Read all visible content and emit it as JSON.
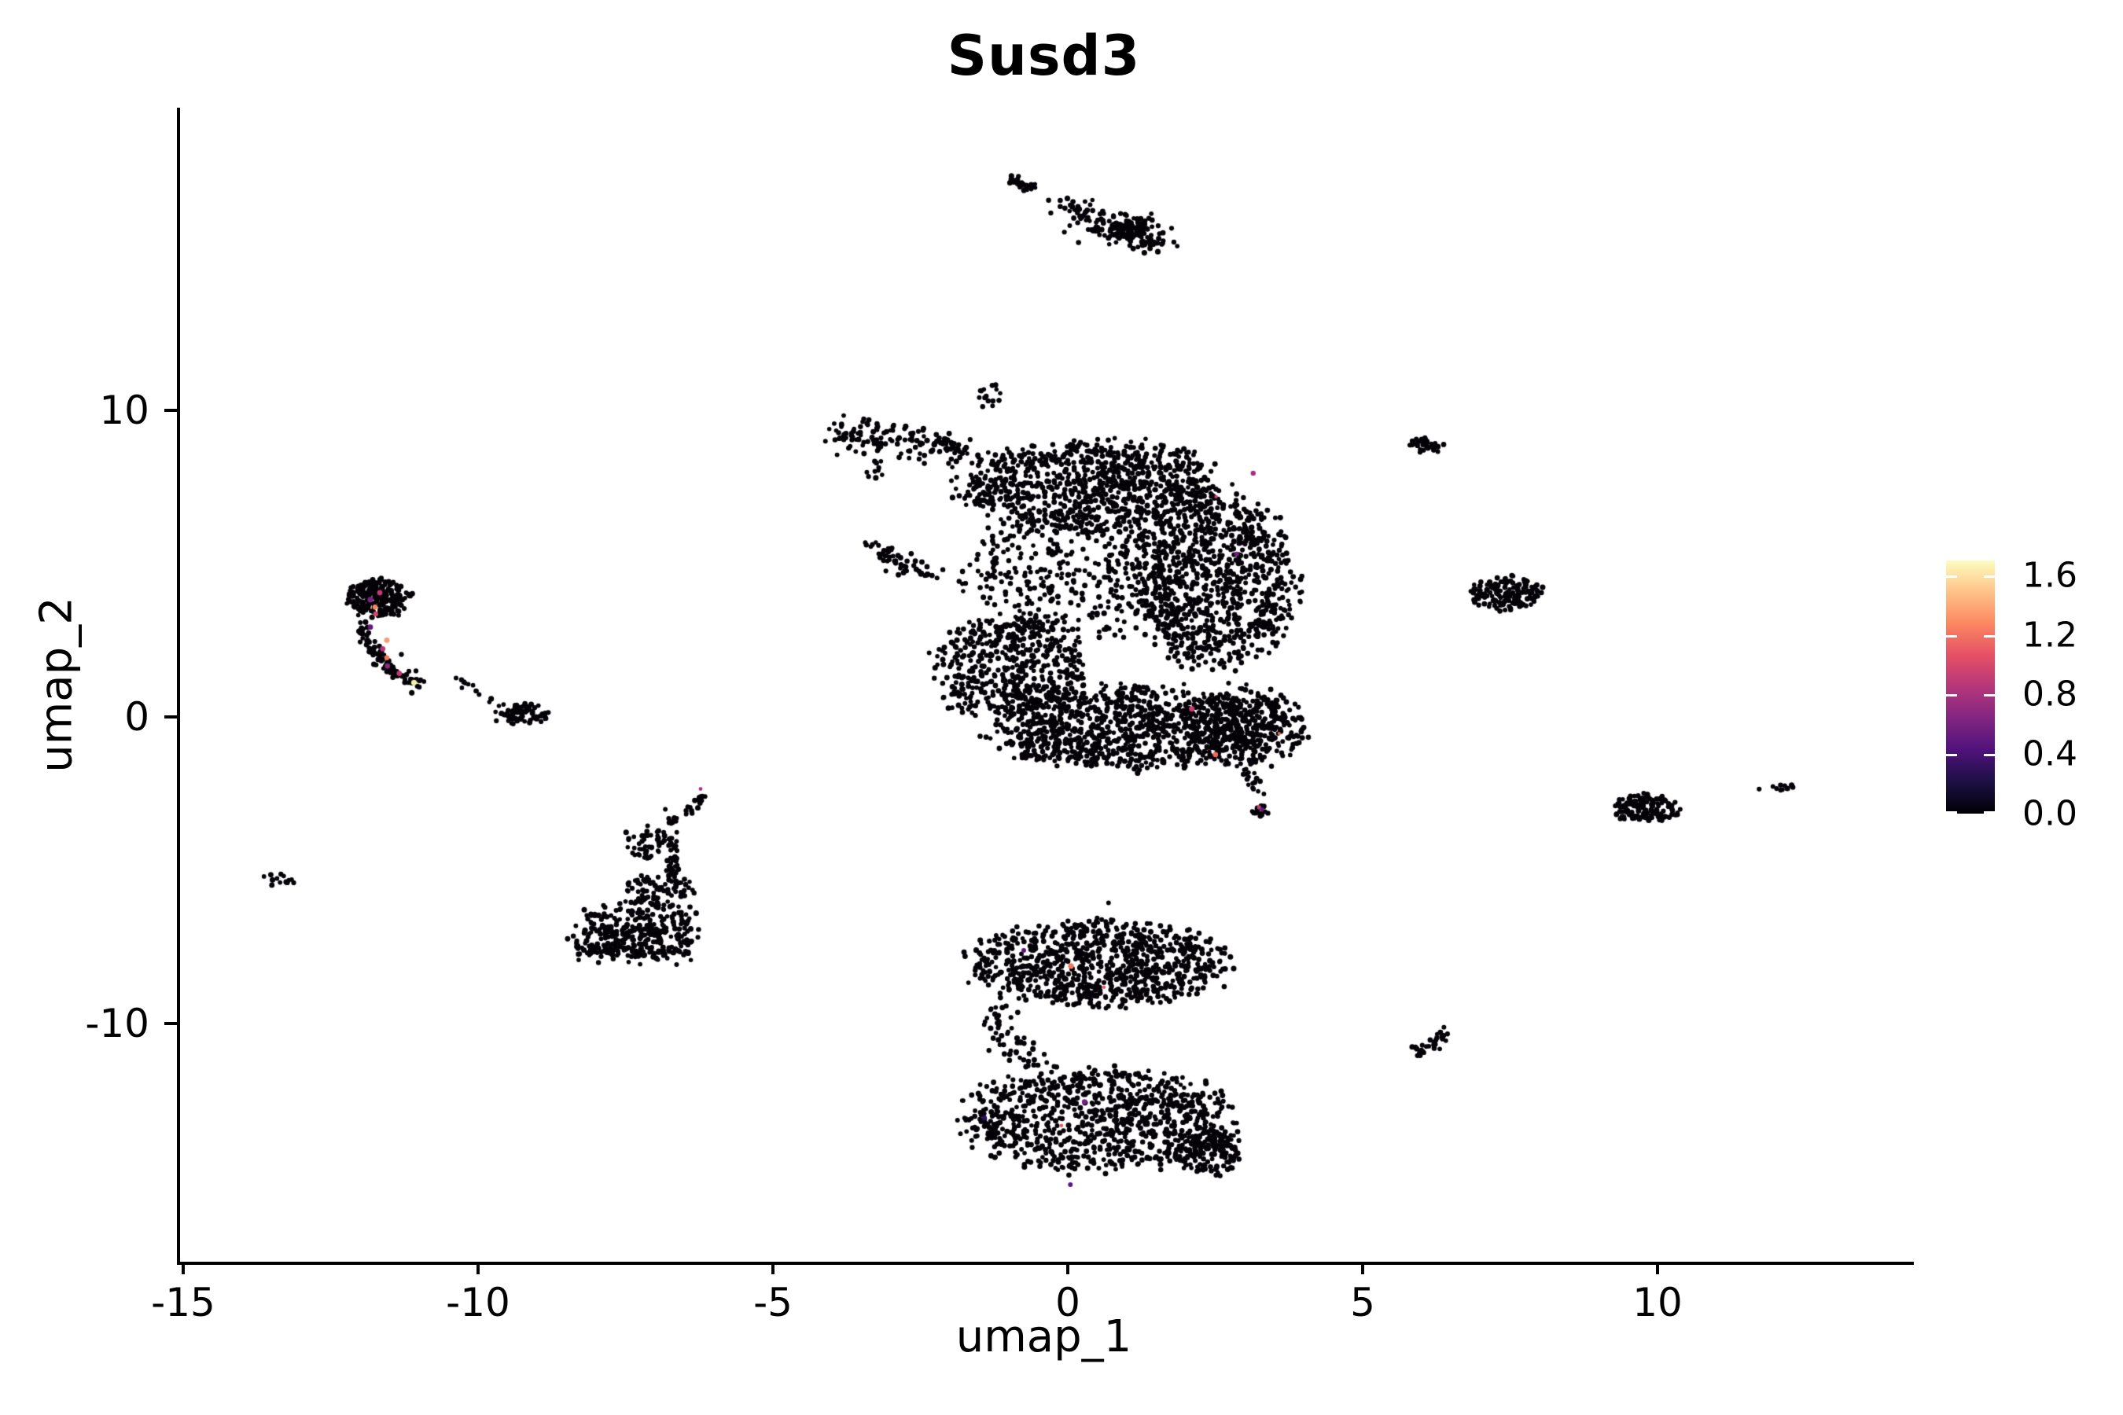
{
  "figure": {
    "background": "#ffffff",
    "axis_color": "#000000"
  },
  "chart_data": {
    "type": "scatter",
    "title": "Susd3",
    "xlabel": "umap_1",
    "ylabel": "umap_2",
    "xlim": [
      -15.107,
      14.293
    ],
    "ylim": [
      -17.774,
      19.872
    ],
    "grid": false,
    "x_tick_values": [
      -15,
      -10,
      -5,
      0,
      5,
      10
    ],
    "x_tick_labels": [
      "-15",
      "-10",
      "-5",
      "0",
      "5",
      "10"
    ],
    "y_tick_values": [
      -10,
      0,
      10
    ],
    "y_tick_labels": [
      "-10",
      "0",
      "10"
    ],
    "point_color": "#050208",
    "colorbar": {
      "position": "right",
      "min": 0.0,
      "max": 1.7,
      "tick_values": [
        1.6,
        1.2,
        0.8,
        0.4,
        0.0
      ],
      "tick_labels": [
        "1.6",
        "1.2",
        "0.8",
        "0.4",
        "0.0"
      ],
      "colormap": "magma",
      "stops": [
        [
          "0%",
          "#000004"
        ],
        [
          "12.5%",
          "#1c1044"
        ],
        [
          "25%",
          "#4f127b"
        ],
        [
          "37.5%",
          "#812581"
        ],
        [
          "50%",
          "#b5367a"
        ],
        [
          "62.5%",
          "#e55064"
        ],
        [
          "75%",
          "#fb8761"
        ],
        [
          "87.5%",
          "#fec287"
        ],
        [
          "100%",
          "#fcfdbf"
        ]
      ]
    },
    "seed": 7,
    "clusters": [
      {
        "t": "line",
        "x1": -1.02,
        "y1": 17.55,
        "x2": -0.6,
        "y2": 17.18,
        "w": 4,
        "n": 30
      },
      {
        "t": "line",
        "x1": -0.5,
        "y1": 16.95,
        "x2": 0.05,
        "y2": 16.62,
        "w": 3,
        "n": 6
      },
      {
        "t": "line",
        "x1": 0.02,
        "y1": 16.5,
        "x2": 1.55,
        "y2": 15.45,
        "w": 11,
        "n": 130
      },
      {
        "t": "blob",
        "cx": 1.05,
        "cy": 15.85,
        "rx": 0.38,
        "ry": 0.42,
        "n": 60
      },
      {
        "t": "line",
        "x1": -4.05,
        "y1": 9.25,
        "x2": -1.75,
        "y2": 8.75,
        "w": 10,
        "n": 150
      },
      {
        "t": "blob",
        "cx": -3.3,
        "cy": 8.05,
        "rx": 0.3,
        "ry": 0.28,
        "n": 9
      },
      {
        "t": "line",
        "x1": -3.42,
        "y1": 5.52,
        "x2": -2.35,
        "y2": 4.55,
        "w": 7,
        "n": 55
      },
      {
        "t": "blob",
        "cx": 0.3,
        "cy": 7.55,
        "rx": 2.15,
        "ry": 1.45,
        "n": 900
      },
      {
        "t": "blob",
        "cx": 2.4,
        "cy": 4.4,
        "rx": 1.35,
        "ry": 2.7,
        "n": 950
      },
      {
        "t": "blob",
        "cx": 0.1,
        "cy": 4.7,
        "rx": 1.8,
        "ry": 2.0,
        "n": 380
      },
      {
        "t": "blob",
        "cx": -1.05,
        "cy": 1.6,
        "rx": 1.25,
        "ry": 1.6,
        "n": 520
      },
      {
        "t": "blob",
        "cx": 1.0,
        "cy": -0.35,
        "rx": 2.3,
        "ry": 1.3,
        "n": 950
      },
      {
        "t": "blob",
        "cx": 3.0,
        "cy": -0.3,
        "rx": 1.0,
        "ry": 1.25,
        "n": 300
      },
      {
        "t": "line",
        "x1": 3.0,
        "y1": -1.8,
        "x2": 3.22,
        "y2": -2.65,
        "w": 4,
        "n": 16
      },
      {
        "t": "blob",
        "cx": 3.2,
        "cy": -3.05,
        "rx": 0.14,
        "ry": 0.2,
        "n": 13
      },
      {
        "t": "blob",
        "cx": -1.35,
        "cy": 10.45,
        "rx": 0.22,
        "ry": 0.35,
        "n": 16
      },
      {
        "t": "blob",
        "cx": -11.75,
        "cy": 3.9,
        "rx": 0.5,
        "ry": 0.6,
        "n": 240
      },
      {
        "t": "curve",
        "x1": -12.05,
        "y1": 3.1,
        "cx": -11.85,
        "cy": 1.55,
        "x2": -10.95,
        "y2": 1.02,
        "w": 5,
        "n": 90
      },
      {
        "t": "line",
        "x1": -10.55,
        "y1": 1.15,
        "x2": -10.12,
        "y2": 1.05,
        "w": 3,
        "n": 7
      },
      {
        "t": "line",
        "x1": -10.2,
        "y1": 0.8,
        "x2": -9.7,
        "y2": 0.45,
        "w": 4,
        "n": 6
      },
      {
        "t": "blob",
        "cx": -9.28,
        "cy": 0.1,
        "rx": 0.42,
        "ry": 0.3,
        "n": 80
      },
      {
        "t": "blob",
        "cx": -13.42,
        "cy": -5.3,
        "rx": 0.25,
        "ry": 0.2,
        "n": 14
      },
      {
        "t": "curve",
        "x1": -6.25,
        "y1": -2.42,
        "cx": -6.35,
        "cy": -3.1,
        "x2": -6.72,
        "y2": -3.3,
        "w": 4,
        "n": 24
      },
      {
        "t": "line",
        "x1": -6.73,
        "y1": -3.2,
        "x2": -6.76,
        "y2": -5.45,
        "w": 5,
        "n": 45
      },
      {
        "t": "blob",
        "cx": -7.2,
        "cy": -4.1,
        "rx": 0.33,
        "ry": 0.55,
        "n": 50
      },
      {
        "t": "blob",
        "cx": -7.0,
        "cy": -5.6,
        "rx": 0.55,
        "ry": 0.5,
        "n": 70
      },
      {
        "t": "blob",
        "cx": -7.3,
        "cy": -6.6,
        "rx": 0.95,
        "ry": 0.6,
        "n": 120
      },
      {
        "t": "blob",
        "cx": -7.4,
        "cy": -7.3,
        "rx": 1.05,
        "ry": 0.5,
        "n": 170
      },
      {
        "t": "line",
        "x1": -8.35,
        "y1": -7.6,
        "x2": -6.45,
        "y2": -7.78,
        "w": 6,
        "n": 80
      },
      {
        "t": "blob",
        "cx": 0.45,
        "cy": -8.05,
        "rx": 2.1,
        "ry": 1.35,
        "n": 880
      },
      {
        "t": "line",
        "x1": -1.35,
        "y1": -9.7,
        "x2": -0.72,
        "y2": -11.25,
        "w": 12,
        "n": 55
      },
      {
        "t": "blob",
        "cx": 0.45,
        "cy": -13.15,
        "rx": 2.25,
        "ry": 1.6,
        "n": 900
      },
      {
        "t": "blob",
        "cx": 2.3,
        "cy": -14.2,
        "rx": 0.55,
        "ry": 0.7,
        "n": 140
      },
      {
        "t": "blob",
        "cx": 6.02,
        "cy": 8.87,
        "rx": 0.27,
        "ry": 0.2,
        "n": 40
      },
      {
        "t": "blob",
        "cx": 7.4,
        "cy": 4.03,
        "rx": 0.6,
        "ry": 0.5,
        "n": 150
      },
      {
        "t": "blob",
        "cx": 9.75,
        "cy": -2.95,
        "rx": 0.55,
        "ry": 0.45,
        "n": 130
      },
      {
        "t": "blob",
        "cx": 11.62,
        "cy": -2.35,
        "rx": 0.02,
        "ry": 0.02,
        "n": 1
      },
      {
        "t": "blob",
        "cx": 12.1,
        "cy": -2.3,
        "rx": 0.18,
        "ry": 0.09,
        "n": 9
      },
      {
        "t": "line",
        "x1": 5.85,
        "y1": -10.95,
        "x2": 6.38,
        "y2": -10.32,
        "w": 5,
        "n": 30
      },
      {
        "t": "blob",
        "cx": -11.37,
        "cy": 2.1,
        "rx": 0.02,
        "ry": 0.02,
        "n": 1
      },
      {
        "t": "blob",
        "cx": 0.63,
        "cy": -6.15,
        "rx": 0.03,
        "ry": 0.03,
        "n": 1
      }
    ],
    "highlight_points": [
      {
        "x": -11.72,
        "y": 4.05,
        "c": "#c03a76",
        "r": 3.4
      },
      {
        "x": -11.88,
        "y": 3.82,
        "c": "#7d2482",
        "r": 3.6
      },
      {
        "x": -11.8,
        "y": 3.58,
        "c": "#fb8861",
        "r": 3.2
      },
      {
        "x": -11.79,
        "y": 3.36,
        "c": "#d8456c",
        "r": 3.2
      },
      {
        "x": -11.88,
        "y": 2.93,
        "c": "#641a80",
        "r": 3.4
      },
      {
        "x": -11.6,
        "y": 2.5,
        "c": "#fb9b6d",
        "r": 3.4
      },
      {
        "x": -11.67,
        "y": 2.22,
        "c": "#b73779",
        "r": 3.4
      },
      {
        "x": -11.6,
        "y": 1.93,
        "c": "#f8765c",
        "r": 3.2
      },
      {
        "x": -11.59,
        "y": 1.66,
        "c": "#8c2981",
        "r": 3.4
      },
      {
        "x": -11.39,
        "y": 1.42,
        "c": "#c03a76",
        "r": 3.4
      },
      {
        "x": -11.14,
        "y": 1.12,
        "c": "#f5eda8",
        "r": 3.6
      },
      {
        "x": 2.05,
        "y": 0.26,
        "c": "#c73e73",
        "r": 3.6
      },
      {
        "x": 2.45,
        "y": -1.23,
        "c": "#ef6a5f",
        "r": 3.4
      },
      {
        "x": 3.53,
        "y": -0.54,
        "c": "#f4695c",
        "r": 2.0
      },
      {
        "x": 3.19,
        "y": -2.95,
        "c": "#c73e73",
        "r": 2.6
      },
      {
        "x": 3.24,
        "y": -3.02,
        "c": "#641a80",
        "r": 2.6
      },
      {
        "x": 3.09,
        "y": 7.95,
        "c": "#a3307e",
        "r": 3.2
      },
      {
        "x": 2.46,
        "y": 7.18,
        "c": "#c73e73",
        "r": 2.2
      },
      {
        "x": 2.81,
        "y": 5.31,
        "c": "#722081",
        "r": 3.0
      },
      {
        "x": -6.28,
        "y": -2.35,
        "c": "#a3307e",
        "r": 2.4
      },
      {
        "x": 0.0,
        "y": -8.13,
        "c": "#f8765c",
        "r": 3.6
      },
      {
        "x": 0.56,
        "y": -8.82,
        "c": "#e95462",
        "r": 2.2
      },
      {
        "x": -0.8,
        "y": -7.62,
        "c": "#5b167f",
        "r": 3.0
      },
      {
        "x": 0.23,
        "y": -12.56,
        "c": "#722081",
        "r": 3.4
      },
      {
        "x": -0.16,
        "y": -13.33,
        "c": "#e95462",
        "r": 2.2
      },
      {
        "x": -1.47,
        "y": -13.08,
        "c": "#2d1160",
        "r": 3.2
      },
      {
        "x": -0.01,
        "y": -15.26,
        "c": "#5b167f",
        "r": 3.0
      }
    ]
  }
}
